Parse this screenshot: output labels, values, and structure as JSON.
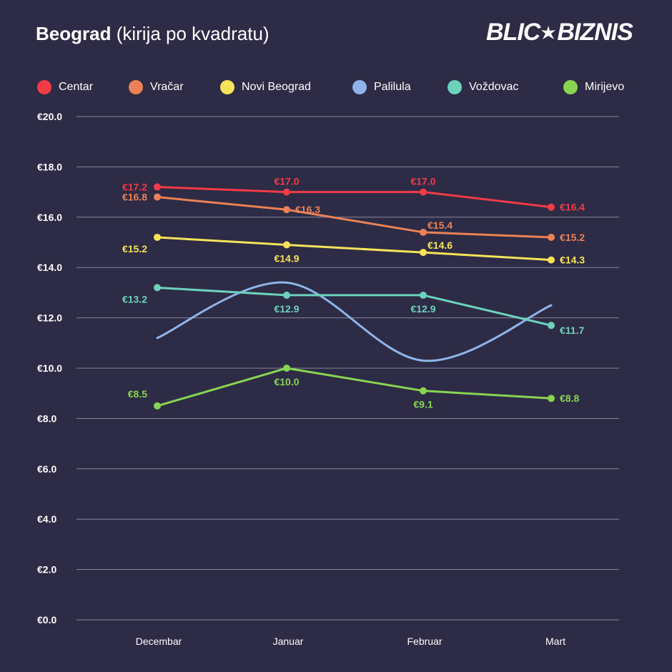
{
  "header": {
    "title_bold": "Beograd",
    "title_rest": "(kirija po kvadratu)",
    "brand_left": "BLIC",
    "brand_right": "BIZNIS"
  },
  "colors": {
    "background": "#2d2b45",
    "grid": "#9a98b0",
    "axis_text": "#ffffff"
  },
  "chart_data": {
    "type": "line",
    "title": "Beograd (kirija po kvadratu)",
    "xlabel": "",
    "ylabel": "",
    "categories": [
      "Decembar",
      "Januar",
      "Februar",
      "Mart"
    ],
    "ylim": [
      0,
      20
    ],
    "yticks": [
      0,
      2,
      4,
      6,
      8,
      10,
      12,
      14,
      16,
      18,
      20
    ],
    "ytick_labels": [
      "€0.0",
      "€2.0",
      "€4.0",
      "€6.0",
      "€8.0",
      "€10.0",
      "€12.0",
      "€14.0",
      "€16.0",
      "€18.0",
      "€20.0"
    ],
    "grid": true,
    "legend_position": "top",
    "series": [
      {
        "name": "Centar",
        "color": "#f23b47",
        "smooth": false,
        "markers": true,
        "values": [
          17.2,
          17.0,
          17.0,
          16.4
        ],
        "labels": [
          "€17.2",
          "€17.0",
          "€17.0",
          "€16.4"
        ],
        "label_pos": [
          "left",
          "above",
          "above",
          "right"
        ]
      },
      {
        "name": "Vračar",
        "color": "#ec8157",
        "smooth": false,
        "markers": true,
        "values": [
          16.8,
          16.3,
          15.4,
          15.2
        ],
        "labels": [
          "€16.8",
          "€16.3",
          "€15.4",
          "€15.2"
        ],
        "label_pos": [
          "left",
          "right",
          "above-right",
          "right"
        ]
      },
      {
        "name": "Novi Beograd",
        "color": "#f7e35a",
        "smooth": false,
        "markers": true,
        "values": [
          15.2,
          14.9,
          14.6,
          14.3
        ],
        "labels": [
          "€15.2",
          "€14.9",
          "€14.6",
          "€14.3"
        ],
        "label_pos": [
          "left-below",
          "below",
          "above-right",
          "right"
        ]
      },
      {
        "name": "Palilula",
        "color": "#8fb4ea",
        "smooth": true,
        "markers": false,
        "values": [
          11.2,
          13.4,
          10.3,
          12.5
        ],
        "labels": [],
        "label_pos": []
      },
      {
        "name": "Voždovac",
        "color": "#6cd2bc",
        "smooth": false,
        "markers": true,
        "values": [
          13.2,
          12.9,
          12.9,
          11.7
        ],
        "labels": [
          "€13.2",
          "€12.9",
          "€12.9",
          "€11.7"
        ],
        "label_pos": [
          "left-below",
          "below",
          "below",
          "right-below"
        ]
      },
      {
        "name": "Mirijevo",
        "color": "#88d552",
        "smooth": false,
        "markers": true,
        "values": [
          8.5,
          10.0,
          9.1,
          8.8
        ],
        "labels": [
          "€8.5",
          "€10.0",
          "€9.1",
          "€8.8"
        ],
        "label_pos": [
          "left-above",
          "below",
          "below",
          "right"
        ]
      }
    ]
  }
}
